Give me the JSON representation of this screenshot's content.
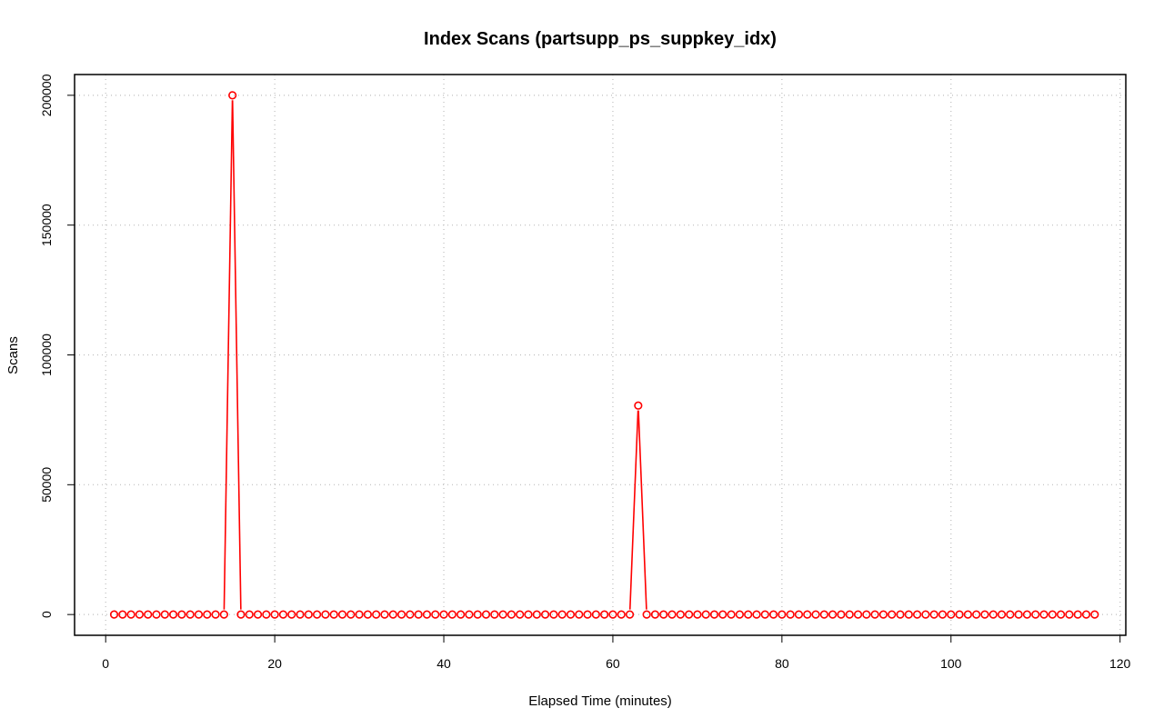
{
  "chart_data": {
    "type": "line",
    "title": "Index Scans (partsupp_ps_suppkey_idx)",
    "xlabel": "Elapsed Time (minutes)",
    "ylabel": "Scans",
    "xlim": [
      -3.68,
      120.68
    ],
    "ylim": [
      -8000,
      208000
    ],
    "x_ticks": [
      0,
      20,
      40,
      60,
      80,
      100,
      120
    ],
    "y_ticks": [
      0,
      50000,
      100000,
      150000,
      200000
    ],
    "grid": true,
    "legend": "none",
    "markers": "open-circle",
    "colors": {
      "series": "#ff0000",
      "grid": "#bebebe",
      "axes": "#000000"
    },
    "series": [
      {
        "x_start": 1,
        "x_step": 1,
        "values": [
          0,
          0,
          0,
          0,
          0,
          0,
          0,
          0,
          0,
          0,
          0,
          0,
          0,
          0,
          200000,
          0,
          0,
          0,
          0,
          0,
          0,
          0,
          0,
          0,
          0,
          0,
          0,
          0,
          0,
          0,
          0,
          0,
          0,
          0,
          0,
          0,
          0,
          0,
          0,
          0,
          0,
          0,
          0,
          0,
          0,
          0,
          0,
          0,
          0,
          0,
          0,
          0,
          0,
          0,
          0,
          0,
          0,
          0,
          0,
          0,
          0,
          0,
          80500,
          0,
          0,
          0,
          0,
          0,
          0,
          0,
          0,
          0,
          0,
          0,
          0,
          0,
          0,
          0,
          0,
          0,
          0,
          0,
          0,
          0,
          0,
          0,
          0,
          0,
          0,
          0,
          0,
          0,
          0,
          0,
          0,
          0,
          0,
          0,
          0,
          0,
          0,
          0,
          0,
          0,
          0,
          0,
          0,
          0,
          0,
          0,
          0,
          0,
          0,
          0,
          0,
          0,
          0
        ]
      }
    ]
  }
}
